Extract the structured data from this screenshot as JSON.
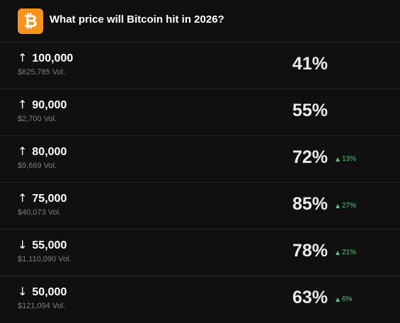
{
  "header": {
    "logo_icon": "bitcoin-icon",
    "logo_glyph": "₿",
    "logo_color": "#f7931a",
    "title": "What price will Bitcoin hit in 2026?"
  },
  "colors": {
    "background": "#101010",
    "positive": "#4cc97a",
    "muted": "#7d7d7d"
  },
  "outcomes": [
    {
      "direction_icon": "arrow-up-icon",
      "arrow": "↑",
      "label": "100,000",
      "volume": "$625,785 Vol.",
      "probability": "41%",
      "change": ""
    },
    {
      "direction_icon": "arrow-up-icon",
      "arrow": "↑",
      "label": "90,000",
      "volume": "$2,700 Vol.",
      "probability": "55%",
      "change": ""
    },
    {
      "direction_icon": "arrow-up-icon",
      "arrow": "↑",
      "label": "80,000",
      "volume": "$9,669 Vol.",
      "probability": "72%",
      "change": "13%"
    },
    {
      "direction_icon": "arrow-up-icon",
      "arrow": "↑",
      "label": "75,000",
      "volume": "$40,073 Vol.",
      "probability": "85%",
      "change": "27%"
    },
    {
      "direction_icon": "arrow-down-icon",
      "arrow": "↓",
      "label": "55,000",
      "volume": "$1,110,090 Vol.",
      "probability": "78%",
      "change": "21%"
    },
    {
      "direction_icon": "arrow-down-icon",
      "arrow": "↓",
      "label": "50,000",
      "volume": "$121,094 Vol.",
      "probability": "63%",
      "change": "6%"
    }
  ]
}
